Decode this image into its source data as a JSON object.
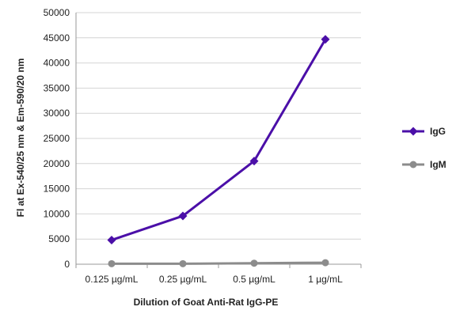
{
  "chart_data": {
    "type": "line",
    "categories": [
      "0.125 µg/mL",
      "0.25 µg/mL",
      "0.5 µg/mL",
      "1 µg/mL"
    ],
    "series": [
      {
        "name": "IgG",
        "values": [
          4800,
          9600,
          20500,
          44700
        ],
        "color": "#4b0fa8",
        "marker": "diamond"
      },
      {
        "name": "IgM",
        "values": [
          100,
          100,
          200,
          300
        ],
        "color": "#8c8c8c",
        "marker": "circle"
      }
    ],
    "xlabel": "Dilution of Goat Anti-Rat IgG-PE",
    "ylabel": "Fl at Ex-540/25 nm & Em-590/20 nm",
    "ylim": [
      0,
      50000
    ],
    "yticks": [
      0,
      5000,
      10000,
      15000,
      20000,
      25000,
      30000,
      35000,
      40000,
      45000,
      50000
    ],
    "grid": true,
    "legend_position": "right"
  }
}
